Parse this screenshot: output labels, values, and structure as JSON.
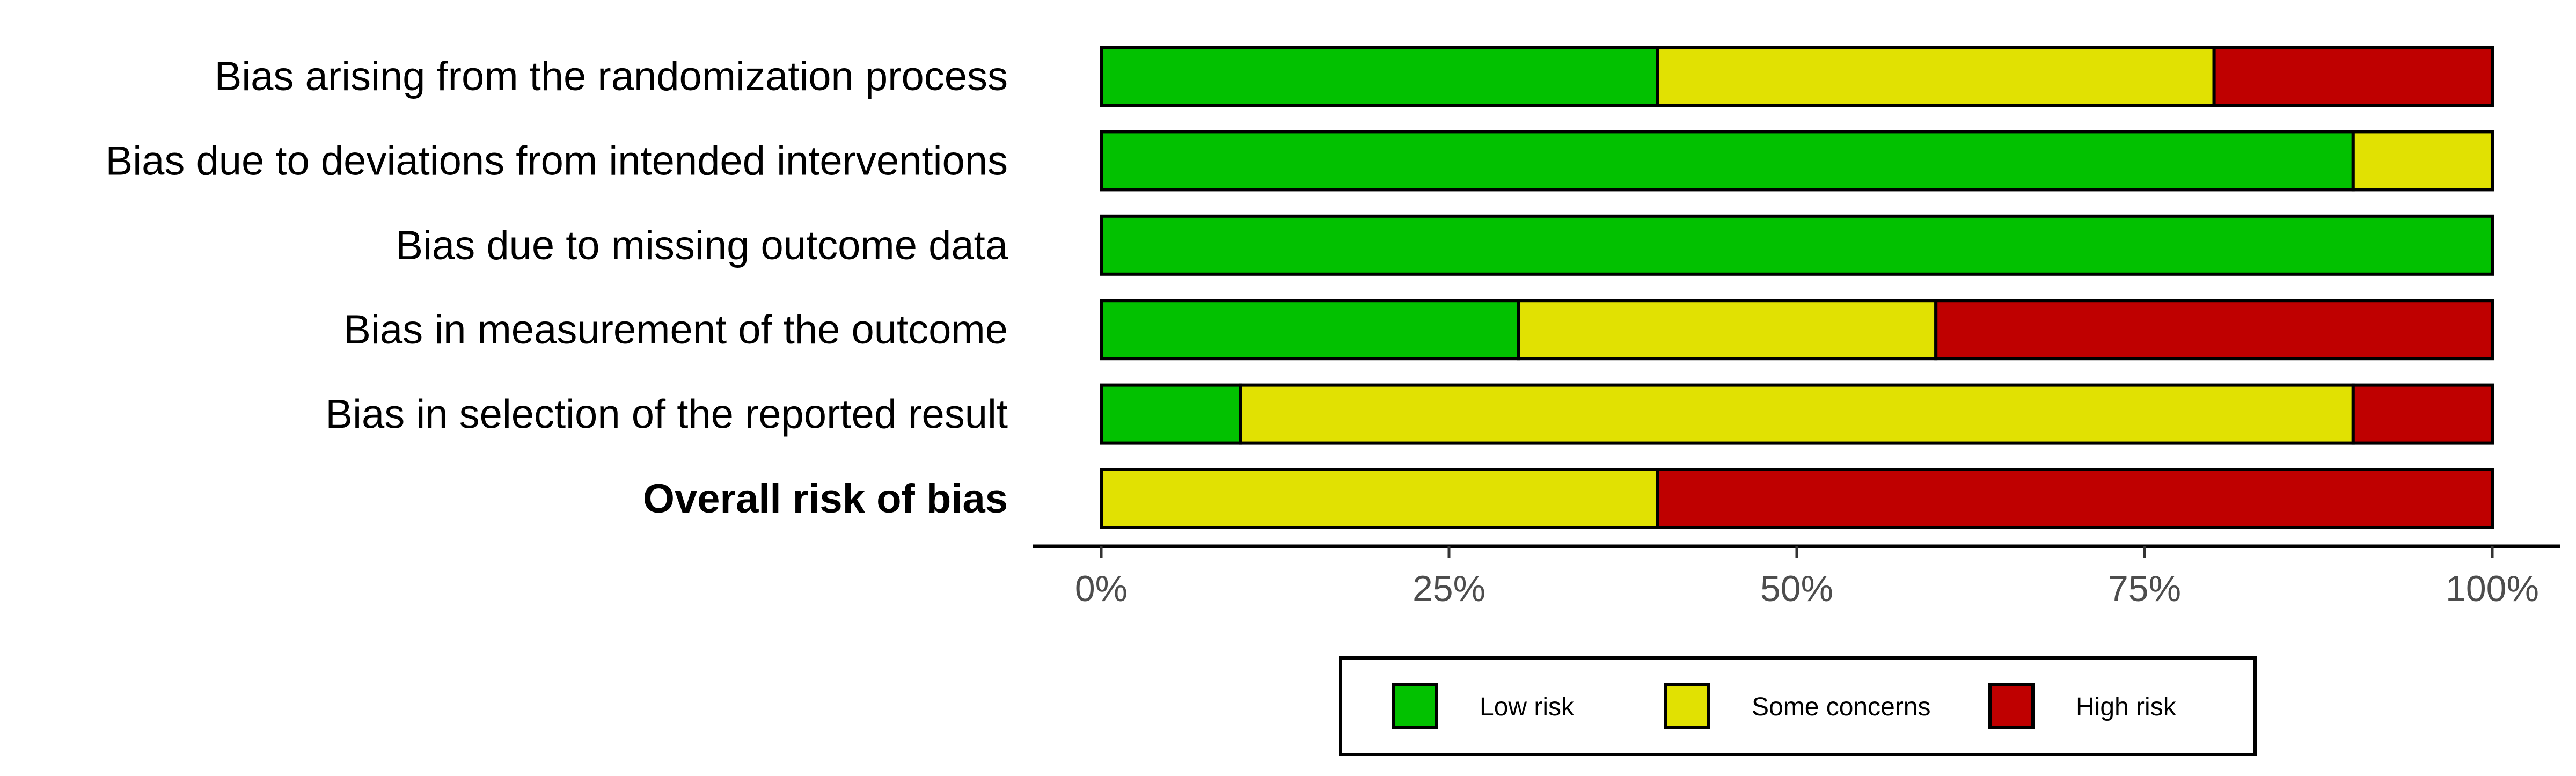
{
  "chart_data": {
    "type": "bar",
    "orientation": "horizontal",
    "stacked": true,
    "categories": [
      "Bias arising from the randomization process",
      "Bias due to deviations from intended interventions",
      "Bias due to missing outcome data",
      "Bias in measurement of the outcome",
      "Bias in selection of the reported result",
      "Overall risk of bias"
    ],
    "bold_categories": [
      "Overall risk of bias"
    ],
    "series": [
      {
        "name": "Low risk",
        "color": "#02c100",
        "values": [
          40,
          90,
          100,
          30,
          10,
          0
        ]
      },
      {
        "name": "Some concerns",
        "color": "#e1e102",
        "values": [
          40,
          10,
          0,
          30,
          80,
          40
        ]
      },
      {
        "name": "High risk",
        "color": "#bf0000",
        "values": [
          20,
          0,
          0,
          40,
          10,
          60
        ]
      }
    ],
    "xlim": [
      0,
      100
    ],
    "x_ticks": [
      "0%",
      "25%",
      "50%",
      "75%",
      "100%"
    ],
    "x_tick_values": [
      0,
      25,
      50,
      75,
      100
    ],
    "xlabel": "",
    "ylabel": "",
    "title": "",
    "grid": false,
    "legend_position": "bottom"
  }
}
